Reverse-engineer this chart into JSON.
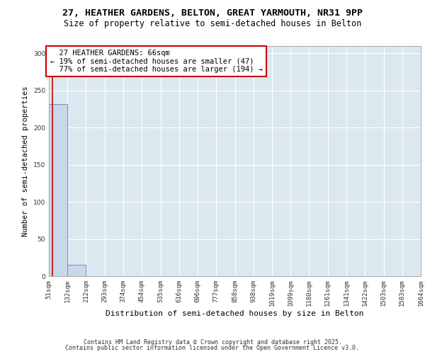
{
  "title": "27, HEATHER GARDENS, BELTON, GREAT YARMOUTH, NR31 9PP",
  "subtitle": "Size of property relative to semi-detached houses in Belton",
  "xlabel": "Distribution of semi-detached houses by size in Belton",
  "ylabel": "Number of semi-detached properties",
  "bins": [
    51,
    132,
    212,
    293,
    374,
    454,
    535,
    616,
    696,
    777,
    858,
    938,
    1019,
    1099,
    1180,
    1261,
    1341,
    1422,
    1503,
    1583,
    1664
  ],
  "bin_labels": [
    "51sqm",
    "132sqm",
    "212sqm",
    "293sqm",
    "374sqm",
    "454sqm",
    "535sqm",
    "616sqm",
    "696sqm",
    "777sqm",
    "858sqm",
    "938sqm",
    "1019sqm",
    "1099sqm",
    "1180sqm",
    "1261sqm",
    "1341sqm",
    "1422sqm",
    "1503sqm",
    "1583sqm",
    "1664sqm"
  ],
  "bar_values": [
    232,
    15,
    0,
    0,
    0,
    0,
    0,
    0,
    0,
    0,
    0,
    0,
    0,
    0,
    0,
    0,
    0,
    0,
    0,
    0
  ],
  "bar_color": "#c8d8e8",
  "bar_edge_color": "#5a8ab0",
  "property_size": 66,
  "property_label": "27 HEATHER GARDENS: 66sqm",
  "pct_smaller": 19,
  "count_smaller": 47,
  "pct_larger": 77,
  "count_larger": 194,
  "annotation_box_color": "#ffffff",
  "annotation_box_edge": "#cc0000",
  "vline_color": "#cc0000",
  "ylim": [
    0,
    310
  ],
  "yticks": [
    0,
    50,
    100,
    150,
    200,
    250,
    300
  ],
  "background_color": "#dce8f0",
  "footer_line1": "Contains HM Land Registry data © Crown copyright and database right 2025.",
  "footer_line2": "Contains public sector information licensed under the Open Government Licence v3.0.",
  "title_fontsize": 9.5,
  "subtitle_fontsize": 8.5,
  "annotation_fontsize": 7.5,
  "tick_fontsize": 6.5,
  "ylabel_fontsize": 7.5,
  "xlabel_fontsize": 8.0,
  "footer_fontsize": 6.0
}
